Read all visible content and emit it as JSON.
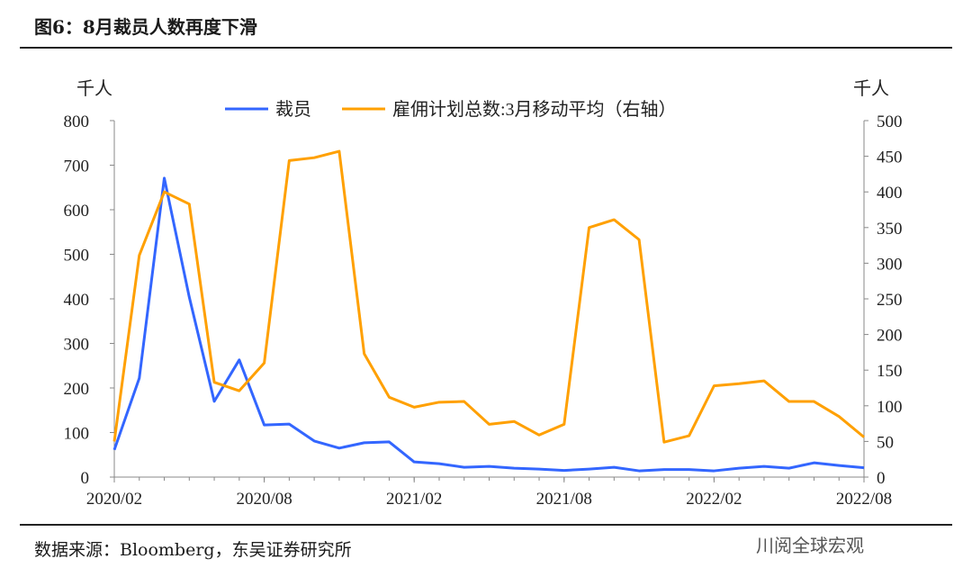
{
  "title": "图6：8月裁员人数再度下滑",
  "source": "数据来源：Bloomberg，东吴证券研究所",
  "watermark": "川阅全球宏观",
  "chart_data": {
    "type": "line",
    "left_unit": "千人",
    "right_unit": "千人",
    "ylim_left": [
      0,
      800
    ],
    "ylim_right": [
      0,
      500
    ],
    "left_ticks": [
      0,
      100,
      200,
      300,
      400,
      500,
      600,
      700,
      800
    ],
    "right_ticks": [
      0,
      50,
      100,
      150,
      200,
      250,
      300,
      350,
      400,
      450,
      500
    ],
    "x_tick_labels": [
      "2020/02",
      "2020/08",
      "2021/02",
      "2021/08",
      "2022/02",
      "2022/08"
    ],
    "legend_placement": "top-center",
    "x": [
      "2020/02",
      "2020/03",
      "2020/04",
      "2020/05",
      "2020/06",
      "2020/07",
      "2020/08",
      "2020/09",
      "2020/10",
      "2020/11",
      "2020/12",
      "2021/01",
      "2021/02",
      "2021/03",
      "2021/04",
      "2021/05",
      "2021/06",
      "2021/07",
      "2021/08",
      "2021/09",
      "2021/10",
      "2021/11",
      "2021/12",
      "2022/01",
      "2022/02",
      "2022/03",
      "2022/04",
      "2022/05",
      "2022/06",
      "2022/07",
      "2022/08"
    ],
    "series": [
      {
        "name": "裁员",
        "axis": "left",
        "color": "#3366ff",
        "values": [
          61,
          222,
          671,
          404,
          170,
          263,
          117,
          119,
          81,
          65,
          77,
          79,
          34,
          30,
          22,
          24,
          20,
          18,
          15,
          18,
          22,
          14,
          17,
          17,
          14,
          20,
          24,
          20,
          32,
          26,
          21
        ]
      },
      {
        "name": "雇佣计划总数:3月移动平均（右轴）",
        "axis": "right",
        "color": "#ffa000",
        "values": [
          50,
          311,
          400,
          383,
          133,
          121,
          160,
          444,
          448,
          457,
          173,
          112,
          98,
          105,
          106,
          74,
          78,
          59,
          74,
          350,
          361,
          333,
          49,
          58,
          128,
          131,
          135,
          106,
          106,
          85,
          56
        ]
      }
    ]
  }
}
